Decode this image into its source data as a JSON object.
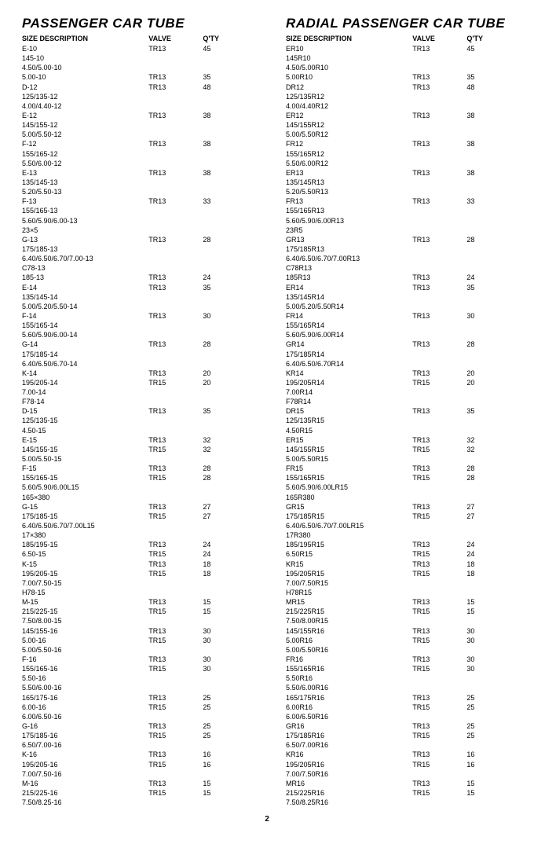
{
  "page_number": "2",
  "tables": [
    {
      "title": "PASSENGER CAR TUBE",
      "headers": {
        "size": "SIZE DESCRIPTION",
        "valve": "VALVE",
        "qty": "Q'TY"
      },
      "rows": [
        {
          "size": "E-10",
          "valve": "TR13",
          "qty": "45"
        },
        {
          "size": "145-10",
          "valve": "",
          "qty": ""
        },
        {
          "size": "4.50/5.00-10",
          "valve": "",
          "qty": ""
        },
        {
          "size": "5.00-10",
          "valve": "TR13",
          "qty": "35"
        },
        {
          "size": "D-12",
          "valve": "TR13",
          "qty": "48"
        },
        {
          "size": "125/135-12",
          "valve": "",
          "qty": ""
        },
        {
          "size": "4.00/4.40-12",
          "valve": "",
          "qty": ""
        },
        {
          "size": "E-12",
          "valve": "TR13",
          "qty": "38"
        },
        {
          "size": "145/155-12",
          "valve": "",
          "qty": ""
        },
        {
          "size": "5.00/5.50-12",
          "valve": "",
          "qty": ""
        },
        {
          "size": "F-12",
          "valve": "TR13",
          "qty": "38"
        },
        {
          "size": "155/165-12",
          "valve": "",
          "qty": ""
        },
        {
          "size": "5.50/6.00-12",
          "valve": "",
          "qty": ""
        },
        {
          "size": "E-13",
          "valve": "TR13",
          "qty": "38"
        },
        {
          "size": "135/145-13",
          "valve": "",
          "qty": ""
        },
        {
          "size": "5.20/5.50-13",
          "valve": "",
          "qty": ""
        },
        {
          "size": "F-13",
          "valve": "TR13",
          "qty": "33"
        },
        {
          "size": "155/165-13",
          "valve": "",
          "qty": ""
        },
        {
          "size": "5.60/5.90/6.00-13",
          "valve": "",
          "qty": ""
        },
        {
          "size": "23×5",
          "valve": "",
          "qty": ""
        },
        {
          "size": "G-13",
          "valve": "TR13",
          "qty": "28"
        },
        {
          "size": "175/185-13",
          "valve": "",
          "qty": ""
        },
        {
          "size": "6.40/6.50/6.70/7.00-13",
          "valve": "",
          "qty": ""
        },
        {
          "size": "C78-13",
          "valve": "",
          "qty": ""
        },
        {
          "size": "185-13",
          "valve": "TR13",
          "qty": "24"
        },
        {
          "size": "E-14",
          "valve": "TR13",
          "qty": "35"
        },
        {
          "size": "135/145-14",
          "valve": "",
          "qty": ""
        },
        {
          "size": "5.00/5.20/5.50-14",
          "valve": "",
          "qty": ""
        },
        {
          "size": "F-14",
          "valve": "TR13",
          "qty": "30"
        },
        {
          "size": "155/165-14",
          "valve": "",
          "qty": ""
        },
        {
          "size": "5.60/5.90/6.00-14",
          "valve": "",
          "qty": ""
        },
        {
          "size": "G-14",
          "valve": "TR13",
          "qty": "28"
        },
        {
          "size": "175/185-14",
          "valve": "",
          "qty": ""
        },
        {
          "size": "6.40/6.50/6.70-14",
          "valve": "",
          "qty": ""
        },
        {
          "size": "K-14",
          "valve": "TR13",
          "qty": "20"
        },
        {
          "size": "195/205-14",
          "valve": "TR15",
          "qty": "20"
        },
        {
          "size": "7.00-14",
          "valve": "",
          "qty": ""
        },
        {
          "size": "F78-14",
          "valve": "",
          "qty": ""
        },
        {
          "size": "D-15",
          "valve": "TR13",
          "qty": "35"
        },
        {
          "size": "125/135-15",
          "valve": "",
          "qty": ""
        },
        {
          "size": "4.50-15",
          "valve": "",
          "qty": ""
        },
        {
          "size": "E-15",
          "valve": "TR13",
          "qty": "32"
        },
        {
          "size": "145/155-15",
          "valve": "TR15",
          "qty": "32"
        },
        {
          "size": "5.00/5.50-15",
          "valve": "",
          "qty": ""
        },
        {
          "size": "F-15",
          "valve": "TR13",
          "qty": "28"
        },
        {
          "size": "155/165-15",
          "valve": "TR15",
          "qty": "28"
        },
        {
          "size": "5.60/5.90/6.00L15",
          "valve": "",
          "qty": ""
        },
        {
          "size": "165×380",
          "valve": "",
          "qty": ""
        },
        {
          "size": "G-15",
          "valve": "TR13",
          "qty": "27"
        },
        {
          "size": "175/185-15",
          "valve": "TR15",
          "qty": "27"
        },
        {
          "size": "6.40/6.50/6.70/7.00L15",
          "valve": "",
          "qty": ""
        },
        {
          "size": "17×380",
          "valve": "",
          "qty": ""
        },
        {
          "size": "185/195-15",
          "valve": "TR13",
          "qty": "24"
        },
        {
          "size": "6.50-15",
          "valve": "TR15",
          "qty": "24"
        },
        {
          "size": "K-15",
          "valve": "TR13",
          "qty": "18"
        },
        {
          "size": "195/205-15",
          "valve": "TR15",
          "qty": "18"
        },
        {
          "size": "7.00/7.50-15",
          "valve": "",
          "qty": ""
        },
        {
          "size": "H78-15",
          "valve": "",
          "qty": ""
        },
        {
          "size": "M-15",
          "valve": "TR13",
          "qty": "15"
        },
        {
          "size": "215/225-15",
          "valve": "TR15",
          "qty": "15"
        },
        {
          "size": "7.50/8.00-15",
          "valve": "",
          "qty": ""
        },
        {
          "size": "145/155-16",
          "valve": "TR13",
          "qty": "30"
        },
        {
          "size": "5.00-16",
          "valve": "TR15",
          "qty": "30"
        },
        {
          "size": "5.00/5.50-16",
          "valve": "",
          "qty": ""
        },
        {
          "size": "F-16",
          "valve": "TR13",
          "qty": "30"
        },
        {
          "size": "155/165-16",
          "valve": "TR15",
          "qty": "30"
        },
        {
          "size": "5.50-16",
          "valve": "",
          "qty": ""
        },
        {
          "size": "5.50/6.00-16",
          "valve": "",
          "qty": ""
        },
        {
          "size": "165/175-16",
          "valve": "TR13",
          "qty": "25"
        },
        {
          "size": "6.00-16",
          "valve": "TR15",
          "qty": "25"
        },
        {
          "size": "6.00/6.50-16",
          "valve": "",
          "qty": ""
        },
        {
          "size": "G-16",
          "valve": "TR13",
          "qty": "25"
        },
        {
          "size": "175/185-16",
          "valve": "TR15",
          "qty": "25"
        },
        {
          "size": "6.50/7.00-16",
          "valve": "",
          "qty": ""
        },
        {
          "size": "K-16",
          "valve": "TR13",
          "qty": "16"
        },
        {
          "size": "195/205-16",
          "valve": "TR15",
          "qty": "16"
        },
        {
          "size": "7.00/7.50-16",
          "valve": "",
          "qty": ""
        },
        {
          "size": "M-16",
          "valve": "TR13",
          "qty": "15"
        },
        {
          "size": "215/225-16",
          "valve": "TR15",
          "qty": "15"
        },
        {
          "size": "7.50/8.25-16",
          "valve": "",
          "qty": ""
        }
      ]
    },
    {
      "title": "RADIAL PASSENGER CAR TUBE",
      "headers": {
        "size": "SIZE DESCRIPTION",
        "valve": "VALVE",
        "qty": "Q'TY"
      },
      "rows": [
        {
          "size": "ER10",
          "valve": "TR13",
          "qty": "45"
        },
        {
          "size": "145R10",
          "valve": "",
          "qty": ""
        },
        {
          "size": "4.50/5.00R10",
          "valve": "",
          "qty": ""
        },
        {
          "size": "5.00R10",
          "valve": "TR13",
          "qty": "35"
        },
        {
          "size": "DR12",
          "valve": "TR13",
          "qty": "48"
        },
        {
          "size": "125/135R12",
          "valve": "",
          "qty": ""
        },
        {
          "size": "4.00/4.40R12",
          "valve": "",
          "qty": ""
        },
        {
          "size": "ER12",
          "valve": "TR13",
          "qty": "38"
        },
        {
          "size": "145/155R12",
          "valve": "",
          "qty": ""
        },
        {
          "size": "5.00/5.50R12",
          "valve": "",
          "qty": ""
        },
        {
          "size": "FR12",
          "valve": "TR13",
          "qty": "38"
        },
        {
          "size": "155/165R12",
          "valve": "",
          "qty": ""
        },
        {
          "size": "5.50/6.00R12",
          "valve": "",
          "qty": ""
        },
        {
          "size": "ER13",
          "valve": "TR13",
          "qty": "38"
        },
        {
          "size": "135/145R13",
          "valve": "",
          "qty": ""
        },
        {
          "size": "5.20/5.50R13",
          "valve": "",
          "qty": ""
        },
        {
          "size": "FR13",
          "valve": "TR13",
          "qty": "33"
        },
        {
          "size": "155/165R13",
          "valve": "",
          "qty": ""
        },
        {
          "size": "5.60/5.90/6.00R13",
          "valve": "",
          "qty": ""
        },
        {
          "size": "23R5",
          "valve": "",
          "qty": ""
        },
        {
          "size": "GR13",
          "valve": "TR13",
          "qty": "28"
        },
        {
          "size": "175/185R13",
          "valve": "",
          "qty": ""
        },
        {
          "size": "6.40/6.50/6.70/7.00R13",
          "valve": "",
          "qty": ""
        },
        {
          "size": "C78R13",
          "valve": "",
          "qty": ""
        },
        {
          "size": "185R13",
          "valve": "TR13",
          "qty": "24"
        },
        {
          "size": "ER14",
          "valve": "TR13",
          "qty": "35"
        },
        {
          "size": "135/145R14",
          "valve": "",
          "qty": ""
        },
        {
          "size": "5.00/5.20/5.50R14",
          "valve": "",
          "qty": ""
        },
        {
          "size": "FR14",
          "valve": "TR13",
          "qty": "30"
        },
        {
          "size": "155/165R14",
          "valve": "",
          "qty": ""
        },
        {
          "size": "5.60/5.90/6.00R14",
          "valve": "",
          "qty": ""
        },
        {
          "size": "GR14",
          "valve": "TR13",
          "qty": "28"
        },
        {
          "size": "175/185R14",
          "valve": "",
          "qty": ""
        },
        {
          "size": "6.40/6.50/6.70R14",
          "valve": "",
          "qty": ""
        },
        {
          "size": "KR14",
          "valve": "TR13",
          "qty": "20"
        },
        {
          "size": "195/205R14",
          "valve": "TR15",
          "qty": "20"
        },
        {
          "size": "7.00R14",
          "valve": "",
          "qty": ""
        },
        {
          "size": "F78R14",
          "valve": "",
          "qty": ""
        },
        {
          "size": "DR15",
          "valve": "TR13",
          "qty": "35"
        },
        {
          "size": "125/135R15",
          "valve": "",
          "qty": ""
        },
        {
          "size": "4.50R15",
          "valve": "",
          "qty": ""
        },
        {
          "size": "ER15",
          "valve": "TR13",
          "qty": "32"
        },
        {
          "size": "145/155R15",
          "valve": "TR15",
          "qty": "32"
        },
        {
          "size": "5.00/5.50R15",
          "valve": "",
          "qty": ""
        },
        {
          "size": "FR15",
          "valve": "TR13",
          "qty": "28"
        },
        {
          "size": "155/165R15",
          "valve": "TR15",
          "qty": "28"
        },
        {
          "size": "5.60/5.90/6.00LR15",
          "valve": "",
          "qty": ""
        },
        {
          "size": "165R380",
          "valve": "",
          "qty": ""
        },
        {
          "size": "GR15",
          "valve": "TR13",
          "qty": "27"
        },
        {
          "size": "175/185R15",
          "valve": "TR15",
          "qty": "27"
        },
        {
          "size": "6.40/6.50/6.70/7.00LR15",
          "valve": "",
          "qty": ""
        },
        {
          "size": "17R380",
          "valve": "",
          "qty": ""
        },
        {
          "size": "185/195R15",
          "valve": "TR13",
          "qty": "24"
        },
        {
          "size": "6.50R15",
          "valve": "TR15",
          "qty": "24"
        },
        {
          "size": "KR15",
          "valve": "TR13",
          "qty": "18"
        },
        {
          "size": "195/205R15",
          "valve": "TR15",
          "qty": "18"
        },
        {
          "size": "7.00/7.50R15",
          "valve": "",
          "qty": ""
        },
        {
          "size": "H78R15",
          "valve": "",
          "qty": ""
        },
        {
          "size": "MR15",
          "valve": "TR13",
          "qty": "15"
        },
        {
          "size": "215/225R15",
          "valve": "TR15",
          "qty": "15"
        },
        {
          "size": "7.50/8.00R15",
          "valve": "",
          "qty": ""
        },
        {
          "size": "145/155R16",
          "valve": "TR13",
          "qty": "30"
        },
        {
          "size": "5.00R16",
          "valve": "TR15",
          "qty": "30"
        },
        {
          "size": "5.00/5.50R16",
          "valve": "",
          "qty": ""
        },
        {
          "size": "FR16",
          "valve": "TR13",
          "qty": "30"
        },
        {
          "size": "155/165R16",
          "valve": "TR15",
          "qty": "30"
        },
        {
          "size": "5.50R16",
          "valve": "",
          "qty": ""
        },
        {
          "size": "5.50/6.00R16",
          "valve": "",
          "qty": ""
        },
        {
          "size": "165/175R16",
          "valve": "TR13",
          "qty": "25"
        },
        {
          "size": "6.00R16",
          "valve": "TR15",
          "qty": "25"
        },
        {
          "size": "6.00/6.50R16",
          "valve": "",
          "qty": ""
        },
        {
          "size": "GR16",
          "valve": "TR13",
          "qty": "25"
        },
        {
          "size": "175/185R16",
          "valve": "TR15",
          "qty": "25"
        },
        {
          "size": "6.50/7.00R16",
          "valve": "",
          "qty": ""
        },
        {
          "size": "KR16",
          "valve": "TR13",
          "qty": "16"
        },
        {
          "size": "195/205R16",
          "valve": "TR15",
          "qty": "16"
        },
        {
          "size": "7.00/7.50R16",
          "valve": "",
          "qty": ""
        },
        {
          "size": "MR16",
          "valve": "TR13",
          "qty": "15"
        },
        {
          "size": "215/225R16",
          "valve": "TR15",
          "qty": "15"
        },
        {
          "size": "7.50/8.25R16",
          "valve": "",
          "qty": ""
        }
      ]
    }
  ]
}
